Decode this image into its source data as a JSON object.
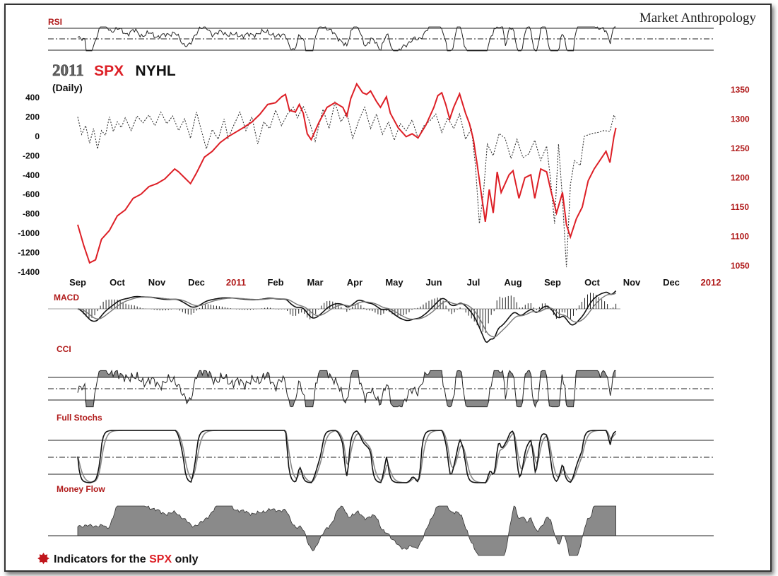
{
  "brand": "Market Anthropology",
  "title": {
    "year": "2011",
    "spx": "SPX",
    "nyhl": "NYHL",
    "subtitle": "(Daily)"
  },
  "footer": {
    "pre": "Indicators for the ",
    "spx": "SPX",
    "post": " only"
  },
  "colors": {
    "spx": "#dd1f26",
    "nyhl": "#333333",
    "label_red": "#b01a1a",
    "panel_fill": "#8a8a8a"
  },
  "panels": {
    "rsi": "RSI",
    "macd": "MACD",
    "cci": "CCI",
    "stoch": "Full Stochs",
    "mfi": "Money Flow"
  },
  "chart_data": {
    "type": "line",
    "x_labels": [
      {
        "label": "Sep",
        "year": false
      },
      {
        "label": "Oct",
        "year": false
      },
      {
        "label": "Nov",
        "year": false
      },
      {
        "label": "Dec",
        "year": false
      },
      {
        "label": "2011",
        "year": true
      },
      {
        "label": "Feb",
        "year": false
      },
      {
        "label": "Mar",
        "year": false
      },
      {
        "label": "Apr",
        "year": false
      },
      {
        "label": "May",
        "year": false
      },
      {
        "label": "Jun",
        "year": false
      },
      {
        "label": "Jul",
        "year": false
      },
      {
        "label": "Aug",
        "year": false
      },
      {
        "label": "Sep",
        "year": false
      },
      {
        "label": "Oct",
        "year": false
      },
      {
        "label": "Nov",
        "year": false
      },
      {
        "label": "Dec",
        "year": false
      },
      {
        "label": "2012",
        "year": true
      }
    ],
    "left_axis": {
      "ticks": [
        "400",
        "200",
        "0",
        "-200",
        "-400",
        "-600",
        "-800",
        "-1000",
        "-1200",
        "-1400"
      ],
      "range": [
        -1400,
        400
      ]
    },
    "right_axis": {
      "ticks": [
        "1350",
        "1300",
        "1250",
        "1200",
        "1150",
        "1100",
        "1050"
      ],
      "range": [
        1050,
        1350
      ]
    },
    "spx": {
      "name": "SPX",
      "points": [
        [
          0,
          1120
        ],
        [
          0.15,
          1085
        ],
        [
          0.3,
          1055
        ],
        [
          0.45,
          1060
        ],
        [
          0.6,
          1095
        ],
        [
          0.8,
          1110
        ],
        [
          1.0,
          1135
        ],
        [
          1.2,
          1145
        ],
        [
          1.4,
          1165
        ],
        [
          1.6,
          1172
        ],
        [
          1.8,
          1185
        ],
        [
          2.0,
          1190
        ],
        [
          2.2,
          1198
        ],
        [
          2.45,
          1215
        ],
        [
          2.55,
          1210
        ],
        [
          2.7,
          1200
        ],
        [
          2.85,
          1190
        ],
        [
          3.0,
          1208
        ],
        [
          3.2,
          1235
        ],
        [
          3.4,
          1245
        ],
        [
          3.6,
          1260
        ],
        [
          3.8,
          1270
        ],
        [
          4.0,
          1278
        ],
        [
          4.2,
          1286
        ],
        [
          4.4,
          1295
        ],
        [
          4.6,
          1308
        ],
        [
          4.8,
          1325
        ],
        [
          5.0,
          1328
        ],
        [
          5.15,
          1338
        ],
        [
          5.25,
          1342
        ],
        [
          5.35,
          1315
        ],
        [
          5.5,
          1312
        ],
        [
          5.6,
          1325
        ],
        [
          5.7,
          1310
        ],
        [
          5.8,
          1275
        ],
        [
          5.9,
          1265
        ],
        [
          6.1,
          1295
        ],
        [
          6.3,
          1320
        ],
        [
          6.5,
          1328
        ],
        [
          6.7,
          1320
        ],
        [
          6.8,
          1305
        ],
        [
          6.9,
          1335
        ],
        [
          7.05,
          1360
        ],
        [
          7.2,
          1345
        ],
        [
          7.3,
          1342
        ],
        [
          7.4,
          1348
        ],
        [
          7.55,
          1330
        ],
        [
          7.65,
          1320
        ],
        [
          7.8,
          1338
        ],
        [
          7.9,
          1310
        ],
        [
          8.1,
          1285
        ],
        [
          8.3,
          1270
        ],
        [
          8.45,
          1275
        ],
        [
          8.6,
          1268
        ],
        [
          8.8,
          1290
        ],
        [
          9.0,
          1320
        ],
        [
          9.1,
          1340
        ],
        [
          9.2,
          1345
        ],
        [
          9.3,
          1325
        ],
        [
          9.4,
          1300
        ],
        [
          9.5,
          1320
        ],
        [
          9.65,
          1343
        ],
        [
          9.8,
          1310
        ],
        [
          9.9,
          1292
        ],
        [
          10.0,
          1265
        ],
        [
          10.1,
          1220
        ],
        [
          10.2,
          1172
        ],
        [
          10.3,
          1125
        ],
        [
          10.4,
          1180
        ],
        [
          10.5,
          1140
        ],
        [
          10.6,
          1210
        ],
        [
          10.7,
          1175
        ],
        [
          10.8,
          1190
        ],
        [
          10.9,
          1205
        ],
        [
          11.0,
          1212
        ],
        [
          11.15,
          1165
        ],
        [
          11.3,
          1200
        ],
        [
          11.45,
          1205
        ],
        [
          11.55,
          1165
        ],
        [
          11.7,
          1215
        ],
        [
          11.85,
          1210
        ],
        [
          11.95,
          1180
        ],
        [
          12.1,
          1140
        ],
        [
          12.25,
          1175
        ],
        [
          12.35,
          1120
        ],
        [
          12.45,
          1099
        ],
        [
          12.6,
          1130
        ],
        [
          12.75,
          1150
        ],
        [
          12.9,
          1195
        ],
        [
          13.05,
          1215
        ],
        [
          13.2,
          1230
        ],
        [
          13.35,
          1245
        ],
        [
          13.45,
          1226
        ],
        [
          13.55,
          1270
        ],
        [
          13.6,
          1285
        ]
      ]
    },
    "nyhl": {
      "name": "NYHL",
      "points": [
        [
          0,
          200
        ],
        [
          0.1,
          20
        ],
        [
          0.2,
          110
        ],
        [
          0.3,
          -70
        ],
        [
          0.4,
          80
        ],
        [
          0.5,
          -130
        ],
        [
          0.6,
          60
        ],
        [
          0.7,
          10
        ],
        [
          0.8,
          200
        ],
        [
          0.9,
          50
        ],
        [
          1.0,
          150
        ],
        [
          1.1,
          90
        ],
        [
          1.2,
          190
        ],
        [
          1.35,
          60
        ],
        [
          1.5,
          210
        ],
        [
          1.65,
          140
        ],
        [
          1.8,
          220
        ],
        [
          1.95,
          110
        ],
        [
          2.1,
          250
        ],
        [
          2.25,
          130
        ],
        [
          2.4,
          210
        ],
        [
          2.55,
          60
        ],
        [
          2.7,
          180
        ],
        [
          2.85,
          -20
        ],
        [
          3.0,
          250
        ],
        [
          3.1,
          100
        ],
        [
          3.25,
          -130
        ],
        [
          3.4,
          70
        ],
        [
          3.55,
          -30
        ],
        [
          3.7,
          180
        ],
        [
          3.8,
          -20
        ],
        [
          3.95,
          120
        ],
        [
          4.1,
          250
        ],
        [
          4.25,
          60
        ],
        [
          4.4,
          200
        ],
        [
          4.55,
          -80
        ],
        [
          4.7,
          150
        ],
        [
          4.85,
          80
        ],
        [
          5.0,
          270
        ],
        [
          5.15,
          110
        ],
        [
          5.3,
          230
        ],
        [
          5.45,
          300
        ],
        [
          5.55,
          190
        ],
        [
          5.7,
          310
        ],
        [
          5.85,
          160
        ],
        [
          6.0,
          -50
        ],
        [
          6.1,
          120
        ],
        [
          6.2,
          280
        ],
        [
          6.35,
          80
        ],
        [
          6.5,
          350
        ],
        [
          6.65,
          150
        ],
        [
          6.8,
          240
        ],
        [
          6.95,
          -20
        ],
        [
          7.1,
          160
        ],
        [
          7.25,
          300
        ],
        [
          7.4,
          80
        ],
        [
          7.55,
          230
        ],
        [
          7.7,
          20
        ],
        [
          7.85,
          150
        ],
        [
          8.0,
          -40
        ],
        [
          8.15,
          130
        ],
        [
          8.3,
          60
        ],
        [
          8.45,
          170
        ],
        [
          8.6,
          -20
        ],
        [
          8.75,
          110
        ],
        [
          8.9,
          160
        ],
        [
          9.05,
          230
        ],
        [
          9.2,
          40
        ],
        [
          9.35,
          190
        ],
        [
          9.5,
          80
        ],
        [
          9.65,
          230
        ],
        [
          9.8,
          -30
        ],
        [
          9.95,
          80
        ],
        [
          10.05,
          -300
        ],
        [
          10.15,
          -900
        ],
        [
          10.25,
          -600
        ],
        [
          10.35,
          -80
        ],
        [
          10.5,
          -200
        ],
        [
          10.65,
          30
        ],
        [
          10.8,
          -20
        ],
        [
          10.95,
          -230
        ],
        [
          11.1,
          -30
        ],
        [
          11.25,
          -220
        ],
        [
          11.4,
          -180
        ],
        [
          11.55,
          -40
        ],
        [
          11.7,
          -250
        ],
        [
          11.85,
          -100
        ],
        [
          11.95,
          -450
        ],
        [
          12.05,
          -900
        ],
        [
          12.15,
          -80
        ],
        [
          12.25,
          -650
        ],
        [
          12.35,
          -1350
        ],
        [
          12.45,
          -500
        ],
        [
          12.55,
          -250
        ],
        [
          12.7,
          -300
        ],
        [
          12.8,
          0
        ],
        [
          13.0,
          30
        ],
        [
          13.15,
          40
        ],
        [
          13.3,
          60
        ],
        [
          13.45,
          50
        ],
        [
          13.55,
          220
        ],
        [
          13.6,
          180
        ]
      ]
    }
  }
}
